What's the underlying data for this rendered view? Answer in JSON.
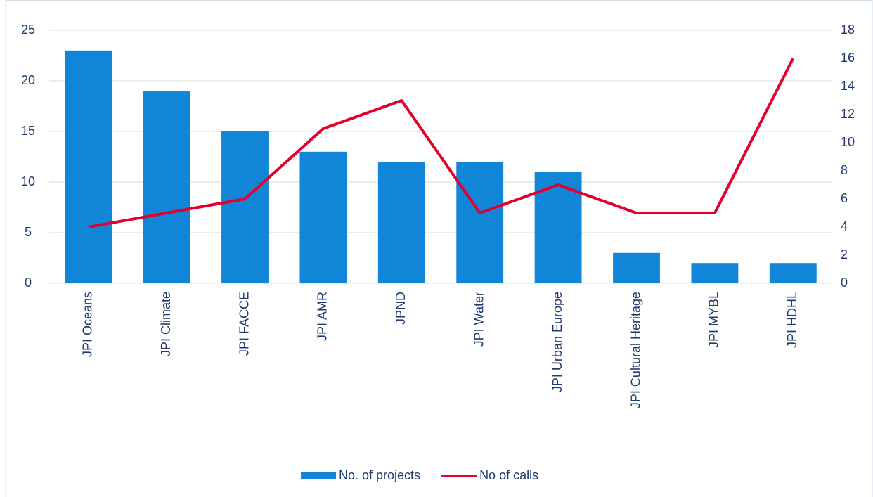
{
  "chart_data": {
    "type": "bar",
    "categories": [
      "JPI Oceans",
      "JPI Climate",
      "JPI FACCE",
      "JPI AMR",
      "JPND",
      "JPI Water",
      "JPI Urban Europe",
      "JPI Cultural Heritage",
      "JPI MYBL",
      "JPI HDHL"
    ],
    "series": [
      {
        "name": "No. of projects",
        "type": "bar",
        "color": "#1185d8",
        "values": [
          23,
          19,
          15,
          13,
          12,
          12,
          11,
          3,
          2,
          2
        ]
      },
      {
        "name": "No of calls",
        "type": "line",
        "axis": "y2",
        "color": "#e4002b",
        "values": [
          4,
          5,
          6,
          11,
          13,
          5,
          7,
          5,
          5,
          16
        ]
      }
    ],
    "ylim": [
      0,
      25
    ],
    "yticks": [
      0,
      5,
      10,
      15,
      20,
      25
    ],
    "y2lim": [
      0,
      18
    ],
    "y2ticks": [
      0,
      2,
      4,
      6,
      8,
      10,
      12,
      14,
      16,
      18
    ],
    "grid": true,
    "legend": "bottom"
  }
}
